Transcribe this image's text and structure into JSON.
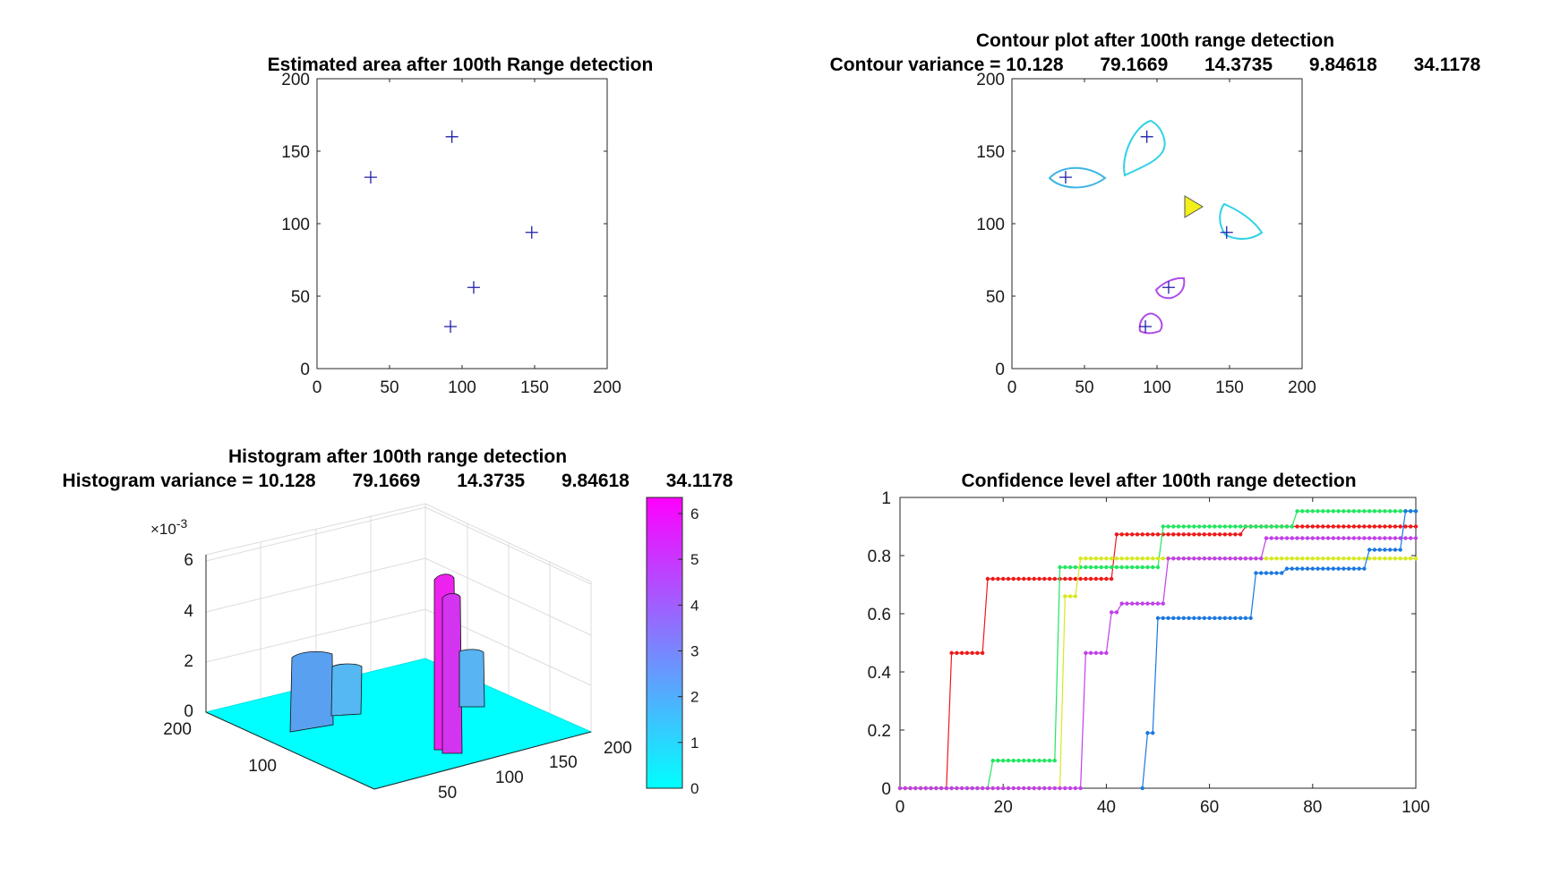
{
  "chart_data": [
    {
      "id": "estimated_area",
      "type": "scatter",
      "title": "Estimated area after 100th  Range detection",
      "xlim": [
        0,
        200
      ],
      "ylim": [
        0,
        200
      ],
      "xticks": [
        0,
        50,
        100,
        150,
        200
      ],
      "yticks": [
        0,
        50,
        100,
        150,
        200
      ],
      "marker": "+",
      "marker_color": "#1f1fa8",
      "points": [
        [
          37,
          132
        ],
        [
          93,
          160
        ],
        [
          148,
          94
        ],
        [
          108,
          56
        ],
        [
          92,
          29
        ]
      ]
    },
    {
      "id": "contour_plot",
      "type": "scatter",
      "title": "Contour plot after 100th  range detection",
      "subtitle": "Contour variance = 10.128       79.1669       14.3735       9.84618       34.1178",
      "xlim": [
        0,
        200
      ],
      "ylim": [
        0,
        200
      ],
      "xticks": [
        0,
        50,
        100,
        150,
        200
      ],
      "yticks": [
        0,
        50,
        100,
        150,
        200
      ],
      "marker": "+",
      "marker_color": "#1f1fa8",
      "points": [
        [
          37,
          132
        ],
        [
          93,
          160
        ],
        [
          148,
          94
        ],
        [
          108,
          56
        ],
        [
          92,
          29
        ]
      ],
      "contour_colors": [
        "#3cb4e6",
        "#2ed2e6",
        "#2ed2e6",
        "#b04ae8",
        "#b04ae8"
      ],
      "sensor": {
        "x": 128,
        "y": 112,
        "color": "#f2ef1a"
      }
    },
    {
      "id": "histogram",
      "type": "surface3d",
      "title": "Histogram after 100th  range detection",
      "subtitle": "Histogram variance = 10.128       79.1669       14.3735       9.84618       34.1178",
      "zlim": [
        0,
        0.006
      ],
      "zticks": [
        "0",
        "2",
        "4",
        "6"
      ],
      "z_exponent": "×10",
      "z_exponent_power": "-3",
      "x_ticks": [
        "50",
        "100",
        "150",
        "200"
      ],
      "y_ticks": [
        "100",
        "200"
      ],
      "peaks": [
        {
          "x": 37,
          "y": 132,
          "z": 0.0038
        },
        {
          "x": 55,
          "y": 120,
          "z": 0.0034
        },
        {
          "x": 93,
          "y": 160,
          "z": 0.0064
        },
        {
          "x": 100,
          "y": 150,
          "z": 0.006
        },
        {
          "x": 112,
          "y": 145,
          "z": 0.003
        }
      ],
      "colorbar": {
        "ticks": [
          "0",
          "1",
          "2",
          "3",
          "4",
          "5",
          "6"
        ],
        "colors": [
          "#00ffff",
          "#ff00ff"
        ]
      }
    },
    {
      "id": "confidence",
      "type": "line",
      "title": "Confidence level after 100th  range detection",
      "xlim": [
        0,
        100
      ],
      "ylim": [
        0,
        1
      ],
      "xticks": [
        0,
        20,
        40,
        60,
        80,
        100
      ],
      "yticks": [
        "0",
        "0.2",
        "0.4",
        "0.6",
        "0.8",
        "1"
      ],
      "series": [
        {
          "color": "#f01818",
          "steps": [
            [
              0,
              0
            ],
            [
              10,
              0.465
            ],
            [
              17,
              0.72
            ],
            [
              42,
              0.873
            ],
            [
              67,
              0.9
            ],
            [
              100,
              0.9
            ]
          ]
        },
        {
          "color": "#22e660",
          "steps": [
            [
              0,
              0
            ],
            [
              18,
              0.095
            ],
            [
              31,
              0.76
            ],
            [
              51,
              0.9
            ],
            [
              77,
              0.953
            ],
            [
              100,
              0.953
            ]
          ]
        },
        {
          "color": "#d8e820",
          "steps": [
            [
              0,
              0
            ],
            [
              32,
              0.66
            ],
            [
              35,
              0.79
            ],
            [
              50,
              0.79
            ],
            [
              100,
              0.79
            ]
          ]
        },
        {
          "color": "#c040e8",
          "steps": [
            [
              0,
              0
            ],
            [
              36,
              0.465
            ],
            [
              41,
              0.605
            ],
            [
              43,
              0.635
            ],
            [
              52,
              0.79
            ],
            [
              71,
              0.86
            ],
            [
              100,
              0.86
            ]
          ]
        },
        {
          "color": "#1a78e0",
          "steps": [
            [
              47,
              0
            ],
            [
              48,
              0.19
            ],
            [
              50,
              0.585
            ],
            [
              69,
              0.74
            ],
            [
              75,
              0.755
            ],
            [
              91,
              0.82
            ],
            [
              98,
              0.953
            ],
            [
              100,
              0.953
            ]
          ]
        }
      ]
    }
  ]
}
